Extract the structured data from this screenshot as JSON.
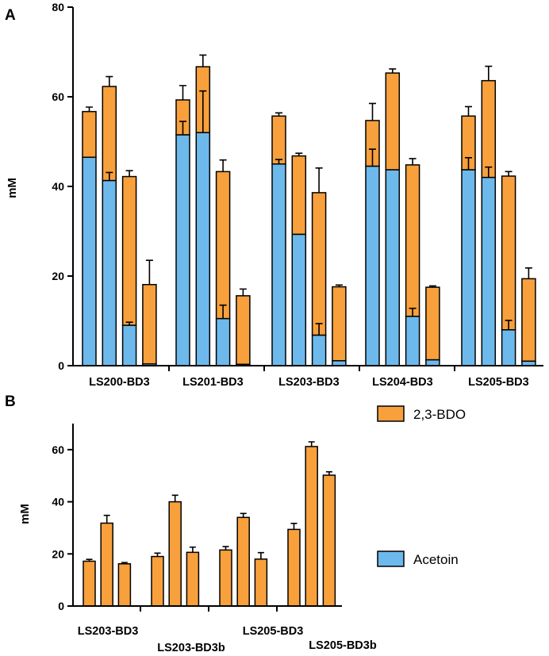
{
  "colors": {
    "bdo": "#F7A03C",
    "acetoin": "#6DB9EC",
    "stroke": "#000000"
  },
  "chart_data": [
    {
      "panel": "A",
      "type": "bar",
      "stacked": true,
      "ylabel": "mM",
      "ylim": [
        0,
        80
      ],
      "yticks": [
        0,
        20,
        40,
        60,
        80
      ],
      "groups": [
        "LS200-BD3",
        "LS201-BD3",
        "LS203-BD3",
        "LS204-BD3",
        "LS205-BD3"
      ],
      "bars_per_group": 4,
      "series": [
        {
          "name": "Acetoin",
          "values": [
            [
              46.5,
              41.3,
              9.0,
              0.4
            ],
            [
              51.5,
              52.0,
              10.5,
              0.3
            ],
            [
              45.0,
              29.3,
              6.8,
              1.1
            ],
            [
              44.5,
              43.7,
              11.0,
              1.3
            ],
            [
              43.7,
              42.0,
              8.0,
              1.0
            ]
          ],
          "errors": [
            [
              0.0,
              1.8,
              0.7,
              0.0
            ],
            [
              3.0,
              9.3,
              3.0,
              0.0
            ],
            [
              1.0,
              0.0,
              2.6,
              0.0
            ],
            [
              3.8,
              0.0,
              1.8,
              0.0
            ],
            [
              2.7,
              2.3,
              2.1,
              0.0
            ]
          ]
        },
        {
          "name": "2,3-BDO",
          "values": [
            [
              10.2,
              21.0,
              33.2,
              17.7
            ],
            [
              7.8,
              14.7,
              32.8,
              15.3
            ],
            [
              10.7,
              17.5,
              31.8,
              16.5
            ],
            [
              10.2,
              21.6,
              33.8,
              16.2
            ],
            [
              12.0,
              21.6,
              34.3,
              18.4
            ]
          ],
          "errors": [
            [
              1.0,
              2.2,
              1.3,
              5.4
            ],
            [
              3.2,
              2.6,
              2.6,
              1.5
            ],
            [
              0.7,
              0.6,
              5.5,
              0.4
            ],
            [
              3.8,
              0.9,
              1.4,
              0.3
            ],
            [
              2.1,
              3.2,
              1.0,
              2.4
            ]
          ]
        }
      ]
    },
    {
      "panel": "B",
      "type": "bar",
      "stacked": false,
      "ylabel": "mM",
      "ylim": [
        0,
        70
      ],
      "yticks": [
        0,
        20,
        40,
        60
      ],
      "categories": [
        "LS203-BD3",
        "LS203-BD3b",
        "LS205-BD3",
        "LS205-BD3b"
      ],
      "series": [
        {
          "name": "2,3-BDO",
          "values": [
            [
              17.2,
              31.8,
              16.2
            ],
            [
              19.0,
              40.0,
              20.6
            ],
            [
              21.5,
              34.0,
              18.0
            ],
            [
              29.4,
              61.2,
              50.2
            ]
          ],
          "errors": [
            [
              0.7,
              3.0,
              0.5
            ],
            [
              1.3,
              2.5,
              2.0
            ],
            [
              1.3,
              1.5,
              2.5
            ],
            [
              2.3,
              1.8,
              1.3
            ]
          ]
        }
      ],
      "legend": [
        {
          "name": "2,3-BDO",
          "color_key": "bdo"
        },
        {
          "name": "Acetoin",
          "color_key": "acetoin"
        }
      ]
    }
  ]
}
